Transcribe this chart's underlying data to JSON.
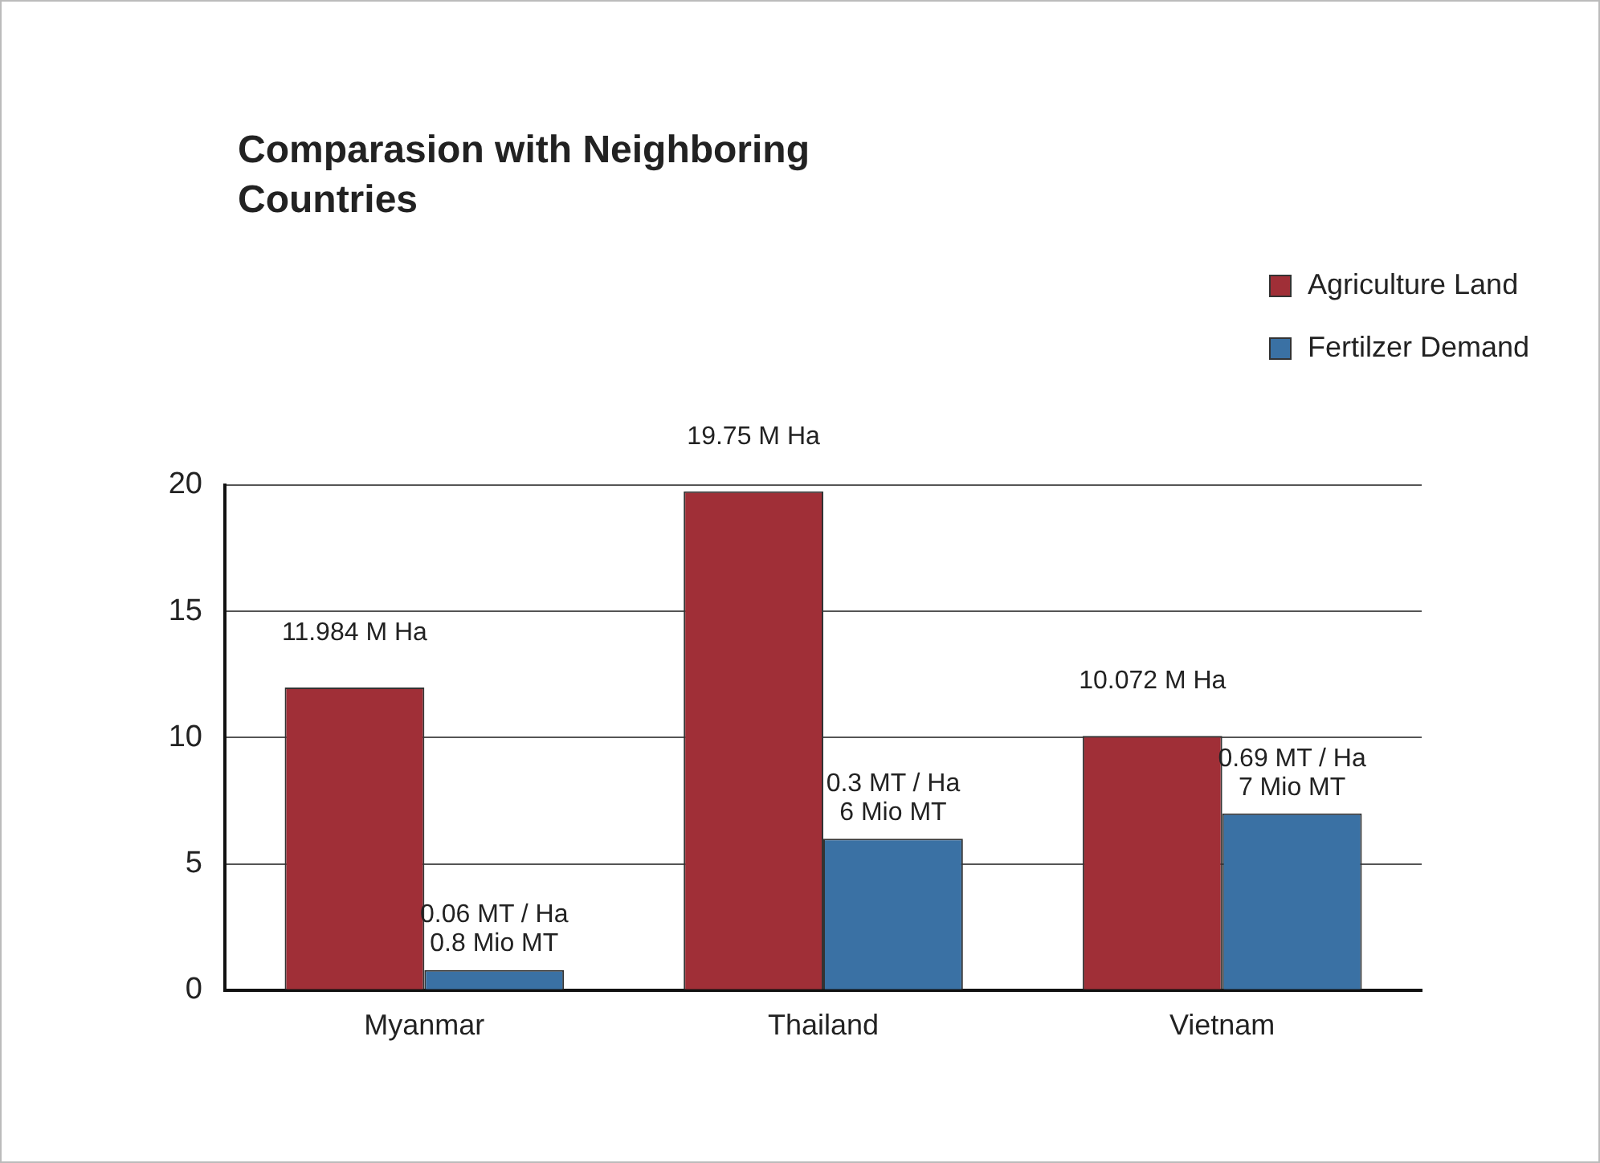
{
  "chart_data": {
    "type": "bar",
    "title": "Comparasion with Neighboring Countries",
    "categories": [
      "Myanmar",
      "Thailand",
      "Vietnam"
    ],
    "series": [
      {
        "name": "Agriculture Land",
        "color": "#a02f37",
        "values": [
          11.984,
          19.75,
          10.072
        ],
        "value_labels": [
          "11.984 M Ha",
          "19.75 M Ha",
          "10.072 M Ha"
        ]
      },
      {
        "name": "Fertilzer Demand",
        "color": "#3a71a4",
        "values": [
          0.8,
          6,
          7
        ],
        "value_labels": [
          "0.06 MT / Ha\n0.8 Mio MT",
          "0.3 MT / Ha\n6 Mio MT",
          "0.69 MT / Ha\n7 Mio MT"
        ]
      }
    ],
    "ylim": [
      0,
      20
    ],
    "yticks": [
      0,
      5,
      10,
      15,
      20
    ],
    "grid": "y",
    "legend": "top right"
  }
}
